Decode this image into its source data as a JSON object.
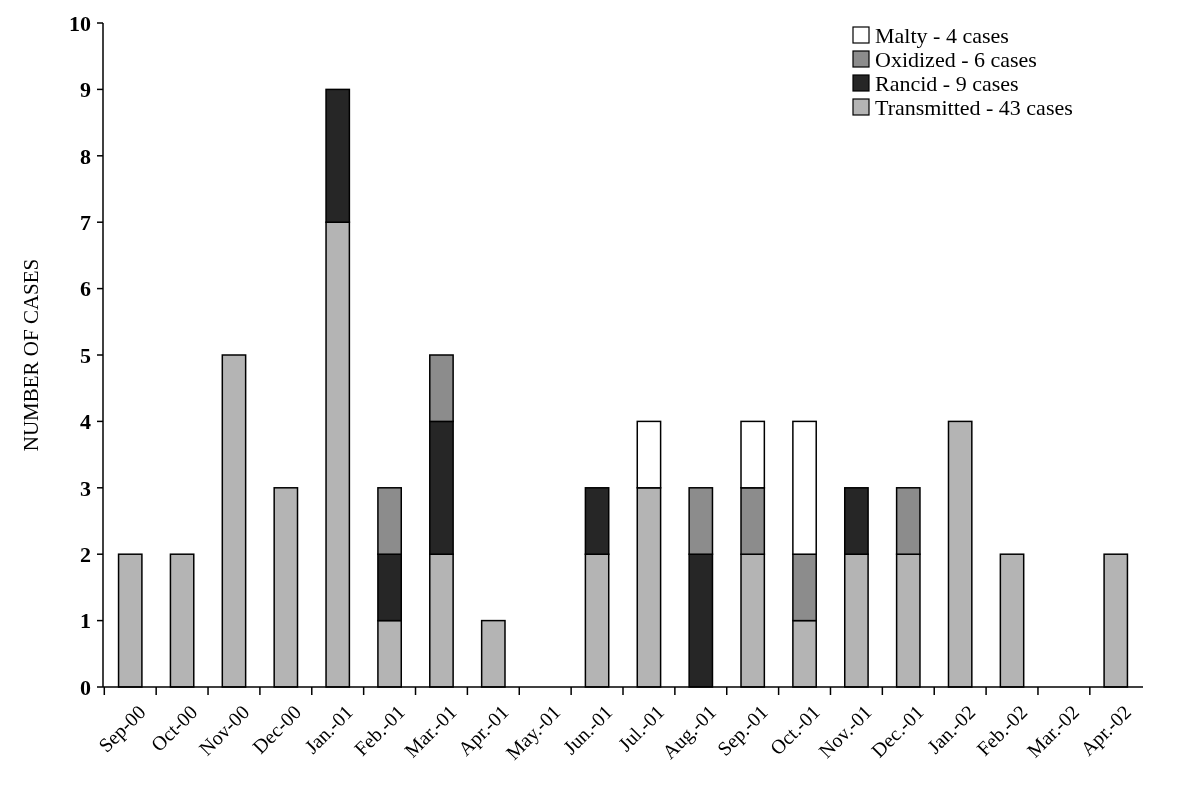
{
  "chart_data": {
    "type": "bar",
    "stacked": true,
    "ylabel": "NUMBER OF CASES",
    "categories": [
      "Sep-00",
      "Oct-00",
      "Nov-00",
      "Dec-00",
      "Jan.-01",
      "Feb.-01",
      "Mar.-01",
      "Apr.-01",
      "May.-01",
      "Jun.-01",
      "Jul.-01",
      "Aug.-01",
      "Sep.-01",
      "Oct.-01",
      "Nov.-01",
      "Dec.-01",
      "Jan.-02",
      "Feb.-02",
      "Mar.-02",
      "Apr.-02"
    ],
    "series": [
      {
        "name": "Transmitted - 43 cases",
        "color": "#b4b4b4",
        "values": [
          2,
          2,
          5,
          3,
          7,
          1,
          2,
          1,
          0,
          2,
          3,
          0,
          2,
          1,
          2,
          2,
          4,
          2,
          0,
          2
        ]
      },
      {
        "name": "Rancid - 9 cases",
        "color": "#262626",
        "values": [
          0,
          0,
          0,
          0,
          2,
          1,
          2,
          0,
          0,
          1,
          0,
          2,
          0,
          0,
          1,
          0,
          0,
          0,
          0,
          0
        ]
      },
      {
        "name": "Oxidized - 6 cases",
        "color": "#8c8c8c",
        "values": [
          0,
          0,
          0,
          0,
          0,
          1,
          1,
          0,
          0,
          0,
          0,
          1,
          1,
          1,
          0,
          1,
          0,
          0,
          0,
          0
        ]
      },
      {
        "name": "Malty - 4 cases",
        "color": "#ffffff",
        "values": [
          0,
          0,
          0,
          0,
          0,
          0,
          0,
          0,
          0,
          0,
          1,
          0,
          1,
          2,
          0,
          0,
          0,
          0,
          0,
          0
        ]
      }
    ],
    "ylim": [
      0,
      10
    ],
    "yticks": [
      0,
      1,
      2,
      3,
      4,
      5,
      6,
      7,
      8,
      9,
      10
    ],
    "grid": false,
    "legend": "top right"
  }
}
